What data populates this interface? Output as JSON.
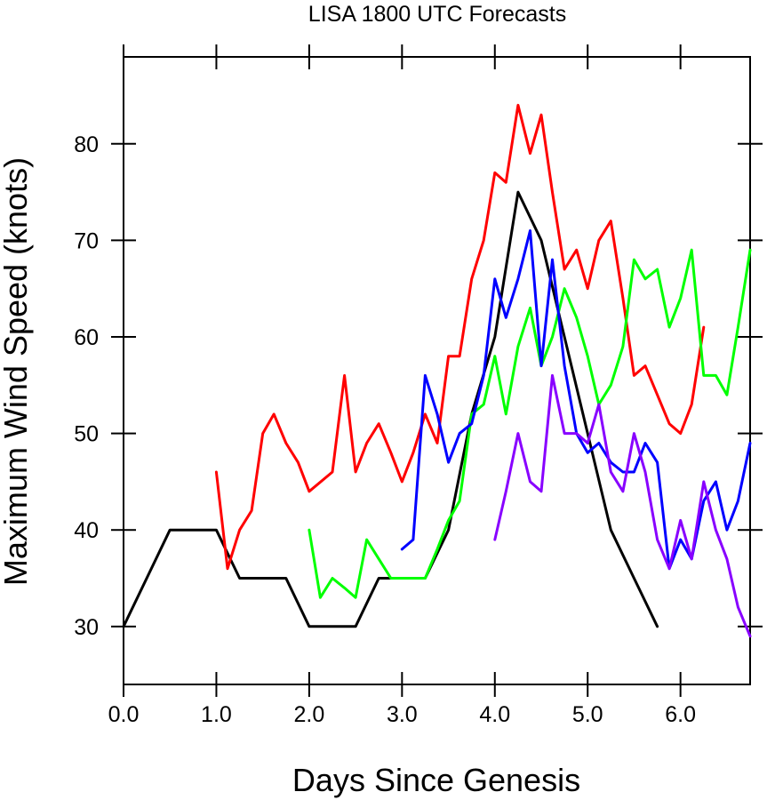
{
  "chart_data": {
    "type": "line",
    "title": "LISA 1800 UTC Forecasts",
    "xlabel": "Days Since Genesis",
    "ylabel": "Maximum Wind Speed (knots)",
    "xlim": [
      0,
      6.75
    ],
    "ylim": [
      24,
      89
    ],
    "x_ticks": [
      0,
      1,
      2,
      3,
      4,
      5,
      6
    ],
    "x_tick_labels": [
      "0.0",
      "1.0",
      "2.0",
      "3.0",
      "4.0",
      "5.0",
      "6.0"
    ],
    "y_ticks": [
      30,
      40,
      50,
      60,
      70,
      80
    ],
    "y_tick_labels": [
      "30",
      "40",
      "50",
      "60",
      "70",
      "80"
    ],
    "grid": false,
    "legend": "none",
    "series": [
      {
        "color": "#000000",
        "points": [
          [
            0,
            30
          ],
          [
            0.5,
            40
          ],
          [
            1.0,
            40
          ],
          [
            1.25,
            35
          ],
          [
            1.75,
            35
          ],
          [
            2.0,
            30
          ],
          [
            2.5,
            30
          ],
          [
            2.75,
            35
          ],
          [
            3.0,
            35
          ],
          [
            3.25,
            35
          ],
          [
            3.5,
            40
          ],
          [
            3.75,
            52
          ],
          [
            4.0,
            60
          ],
          [
            4.25,
            75
          ],
          [
            4.5,
            70
          ],
          [
            4.75,
            60
          ],
          [
            5.0,
            50
          ],
          [
            5.25,
            40
          ],
          [
            5.5,
            35
          ],
          [
            5.75,
            30
          ]
        ]
      },
      {
        "color": "#ff0000",
        "points": [
          [
            1.0,
            46
          ],
          [
            1.12,
            36
          ],
          [
            1.25,
            40
          ],
          [
            1.38,
            42
          ],
          [
            1.5,
            50
          ],
          [
            1.62,
            52
          ],
          [
            1.75,
            49
          ],
          [
            1.88,
            47
          ],
          [
            2.0,
            44
          ],
          [
            2.25,
            46
          ],
          [
            2.38,
            56
          ],
          [
            2.5,
            46
          ],
          [
            2.62,
            49
          ],
          [
            2.75,
            51
          ],
          [
            2.88,
            48
          ],
          [
            3.0,
            45
          ],
          [
            3.12,
            48
          ],
          [
            3.25,
            52
          ],
          [
            3.38,
            49
          ],
          [
            3.5,
            58
          ],
          [
            3.62,
            58
          ],
          [
            3.75,
            66
          ],
          [
            3.88,
            70
          ],
          [
            4.0,
            77
          ],
          [
            4.12,
            76
          ],
          [
            4.25,
            84
          ],
          [
            4.38,
            79
          ],
          [
            4.5,
            83
          ],
          [
            4.62,
            75
          ],
          [
            4.75,
            67
          ],
          [
            4.88,
            69
          ],
          [
            5.0,
            65
          ],
          [
            5.12,
            70
          ],
          [
            5.25,
            72
          ],
          [
            5.38,
            64
          ],
          [
            5.5,
            56
          ],
          [
            5.62,
            57
          ],
          [
            5.75,
            54
          ],
          [
            5.88,
            51
          ],
          [
            6.0,
            50
          ],
          [
            6.12,
            53
          ],
          [
            6.25,
            61
          ]
        ]
      },
      {
        "color": "#00ff00",
        "points": [
          [
            2.0,
            40
          ],
          [
            2.12,
            33
          ],
          [
            2.25,
            35
          ],
          [
            2.38,
            34
          ],
          [
            2.5,
            33
          ],
          [
            2.62,
            39
          ],
          [
            2.75,
            37
          ],
          [
            2.88,
            35
          ],
          [
            3.0,
            35
          ],
          [
            3.12,
            35
          ],
          [
            3.25,
            35
          ],
          [
            3.38,
            38
          ],
          [
            3.5,
            41
          ],
          [
            3.62,
            43
          ],
          [
            3.75,
            52
          ],
          [
            3.88,
            53
          ],
          [
            4.0,
            58
          ],
          [
            4.12,
            52
          ],
          [
            4.25,
            59
          ],
          [
            4.38,
            63
          ],
          [
            4.5,
            57
          ],
          [
            4.62,
            60
          ],
          [
            4.75,
            65
          ],
          [
            4.88,
            62
          ],
          [
            5.0,
            58
          ],
          [
            5.12,
            53
          ],
          [
            5.25,
            55
          ],
          [
            5.38,
            59
          ],
          [
            5.5,
            68
          ],
          [
            5.62,
            66
          ],
          [
            5.75,
            67
          ],
          [
            5.88,
            61
          ],
          [
            6.0,
            64
          ],
          [
            6.12,
            69
          ],
          [
            6.25,
            56
          ],
          [
            6.38,
            56
          ],
          [
            6.5,
            54
          ],
          [
            6.62,
            61
          ],
          [
            6.75,
            69
          ]
        ]
      },
      {
        "color": "#0000ff",
        "points": [
          [
            3.0,
            38
          ],
          [
            3.12,
            39
          ],
          [
            3.25,
            56
          ],
          [
            3.38,
            52
          ],
          [
            3.5,
            47
          ],
          [
            3.62,
            50
          ],
          [
            3.75,
            51
          ],
          [
            3.88,
            56
          ],
          [
            4.0,
            66
          ],
          [
            4.12,
            62
          ],
          [
            4.25,
            66
          ],
          [
            4.38,
            71
          ],
          [
            4.5,
            57
          ],
          [
            4.62,
            68
          ],
          [
            4.75,
            57
          ],
          [
            4.88,
            50
          ],
          [
            5.0,
            48
          ],
          [
            5.12,
            49
          ],
          [
            5.25,
            47
          ],
          [
            5.38,
            46
          ],
          [
            5.5,
            46
          ],
          [
            5.62,
            49
          ],
          [
            5.75,
            47
          ],
          [
            5.88,
            36
          ],
          [
            6.0,
            39
          ],
          [
            6.12,
            37
          ],
          [
            6.25,
            43
          ],
          [
            6.38,
            45
          ],
          [
            6.5,
            40
          ],
          [
            6.62,
            43
          ],
          [
            6.75,
            49
          ]
        ]
      },
      {
        "color": "#8800ff",
        "points": [
          [
            4.0,
            39
          ],
          [
            4.12,
            44
          ],
          [
            4.25,
            50
          ],
          [
            4.38,
            45
          ],
          [
            4.5,
            44
          ],
          [
            4.62,
            56
          ],
          [
            4.75,
            50
          ],
          [
            4.88,
            50
          ],
          [
            5.0,
            49
          ],
          [
            5.12,
            53
          ],
          [
            5.25,
            46
          ],
          [
            5.38,
            44
          ],
          [
            5.5,
            50
          ],
          [
            5.62,
            46
          ],
          [
            5.75,
            39
          ],
          [
            5.88,
            36
          ],
          [
            6.0,
            41
          ],
          [
            6.12,
            37
          ],
          [
            6.25,
            45
          ],
          [
            6.38,
            40
          ],
          [
            6.5,
            37
          ],
          [
            6.62,
            32
          ],
          [
            6.75,
            29
          ]
        ]
      }
    ]
  }
}
